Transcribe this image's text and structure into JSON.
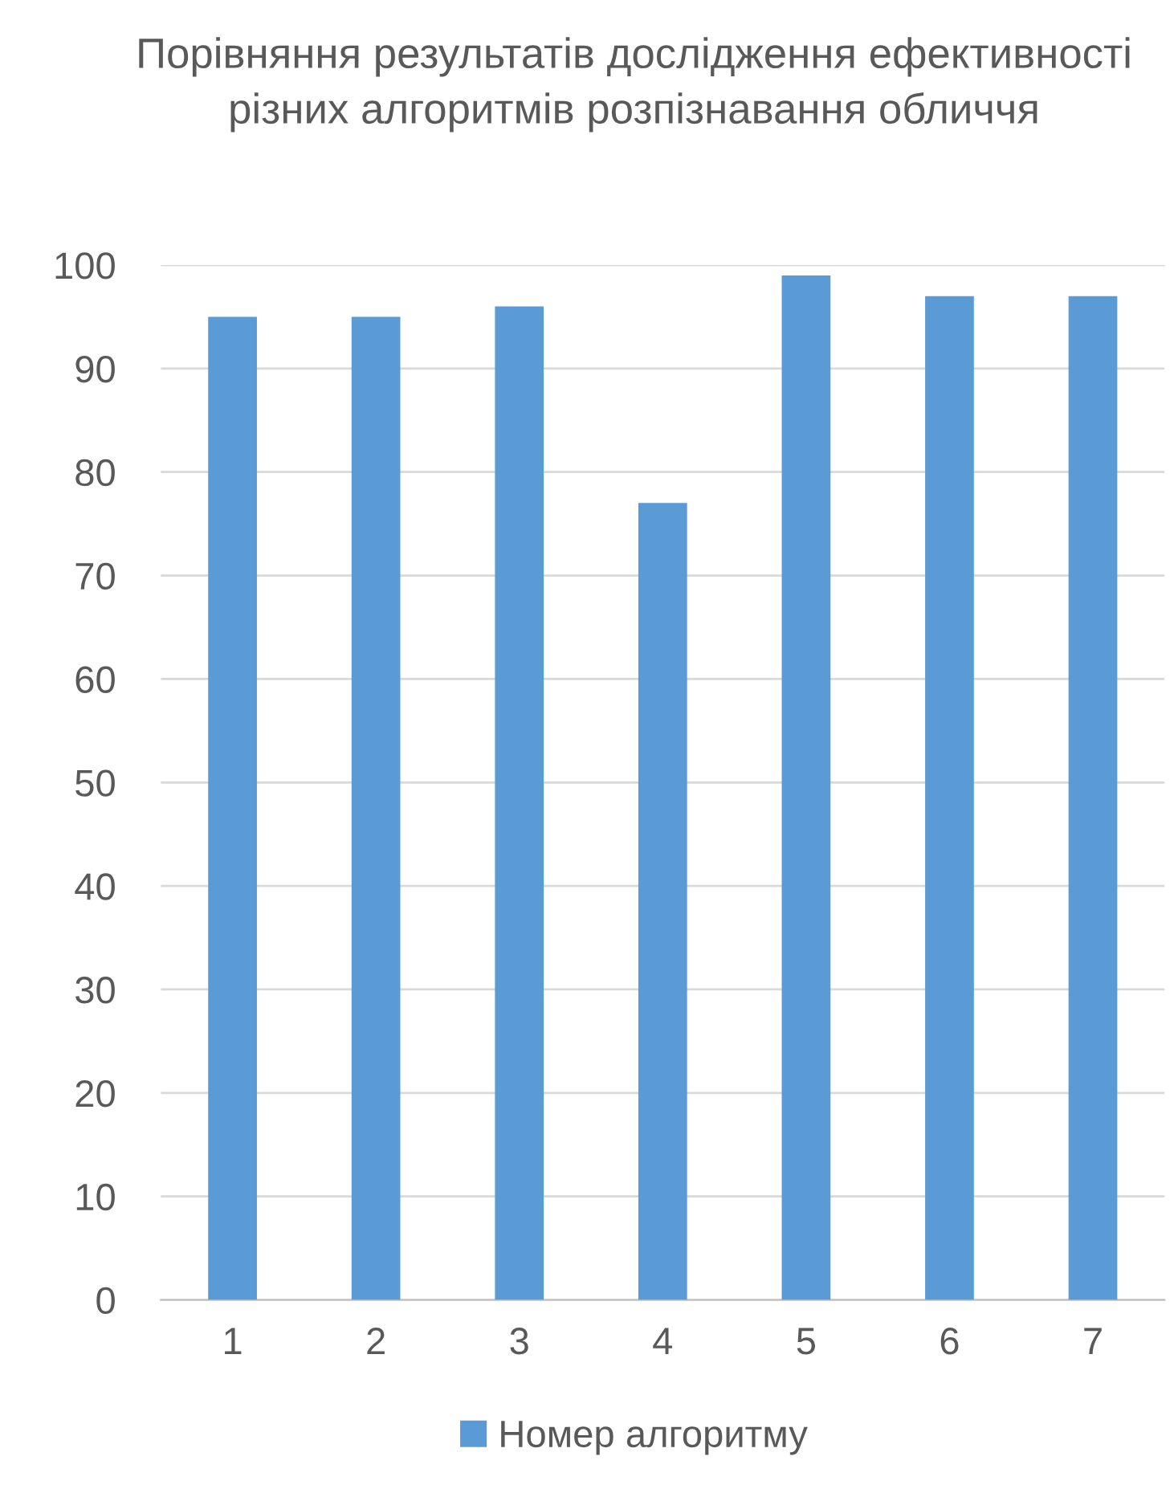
{
  "chart_data": {
    "type": "bar",
    "title": "Порівняння результатів дослідження ефективності різних алгоритмів розпізнавання обличчя",
    "categories": [
      "1",
      "2",
      "3",
      "4",
      "5",
      "6",
      "7"
    ],
    "series": [
      {
        "name": "Номер алгоритму",
        "color": "#5b9bd5",
        "values": [
          95,
          95,
          96,
          77,
          99,
          97,
          97
        ]
      }
    ],
    "ylim": [
      0,
      100
    ],
    "yticks": [
      0,
      10,
      20,
      30,
      40,
      50,
      60,
      70,
      80,
      90,
      100
    ],
    "grid": "y",
    "legend": "bottom"
  }
}
